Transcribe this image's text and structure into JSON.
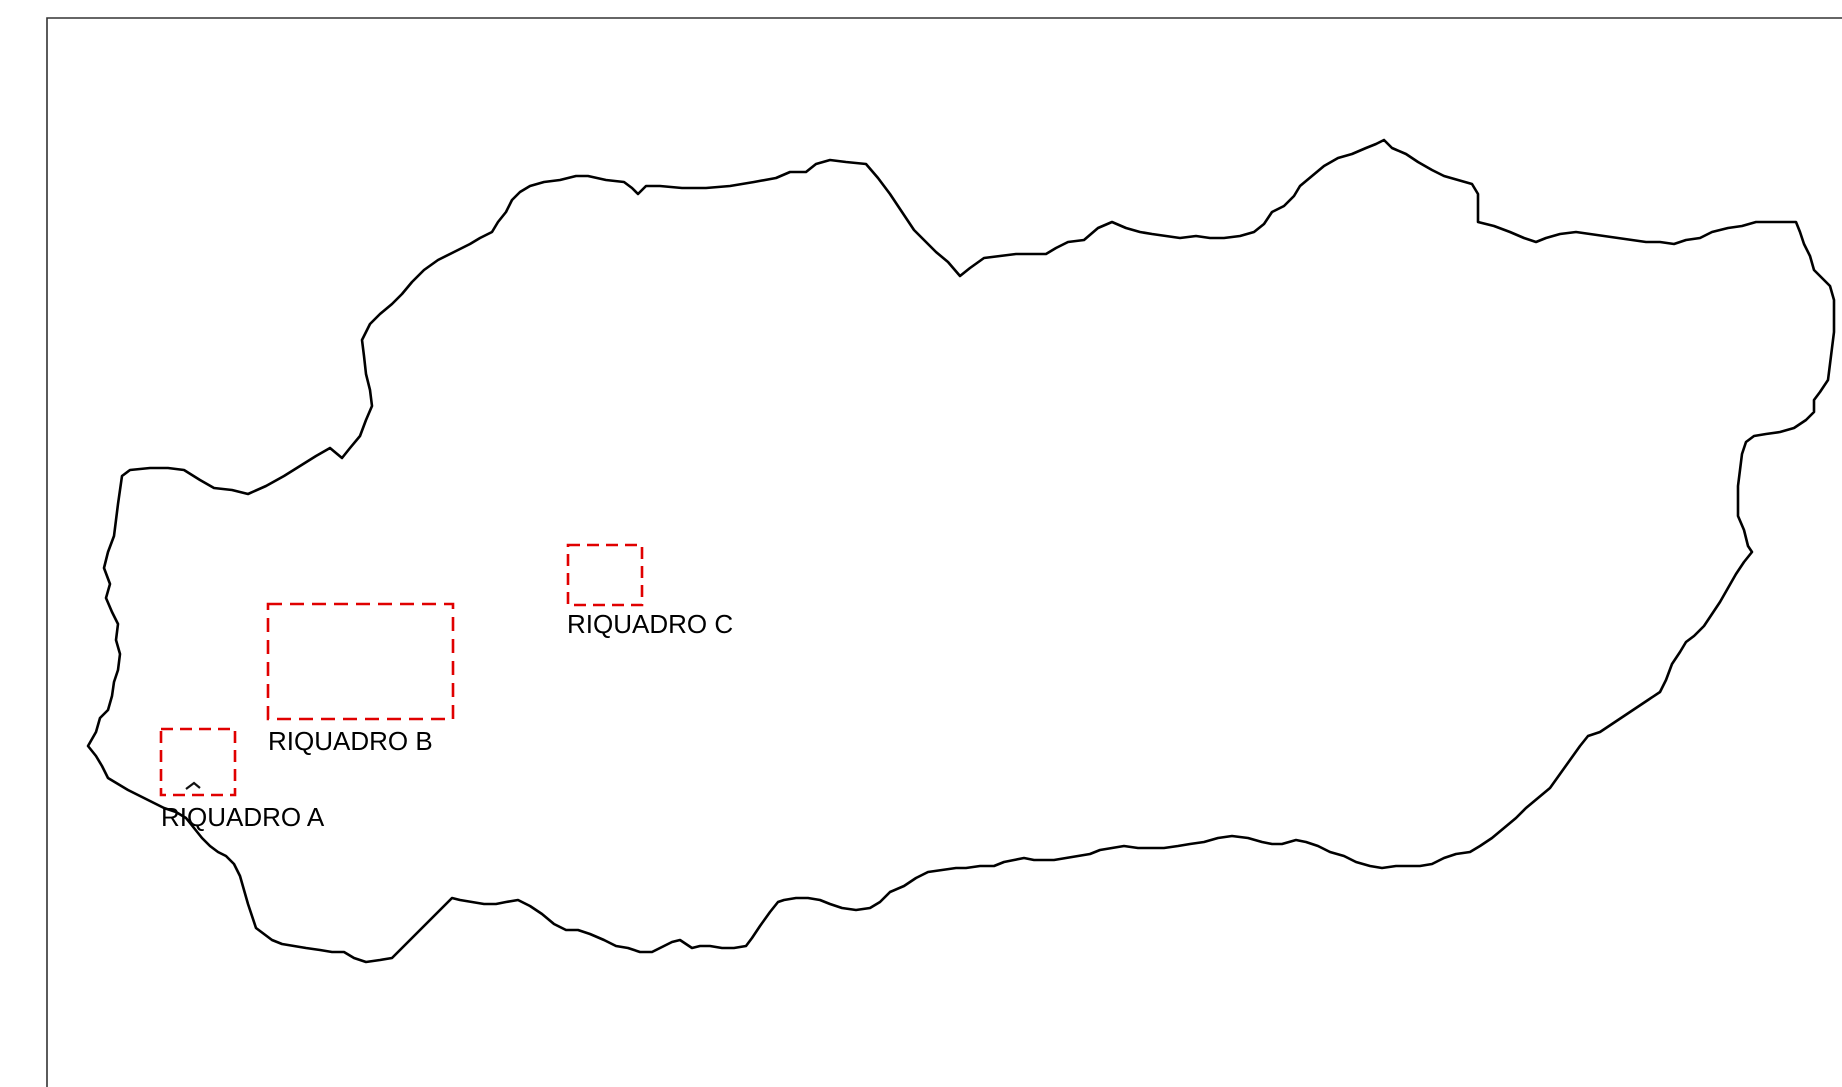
{
  "map": {
    "outline_color": "#000000",
    "frame_color": "#000000",
    "box_color": "#e00000",
    "insets": [
      {
        "id": "a",
        "label": "RIQUADRO A"
      },
      {
        "id": "b",
        "label": "RIQUADRO B"
      },
      {
        "id": "c",
        "label": "RIQUADRO C"
      }
    ]
  }
}
